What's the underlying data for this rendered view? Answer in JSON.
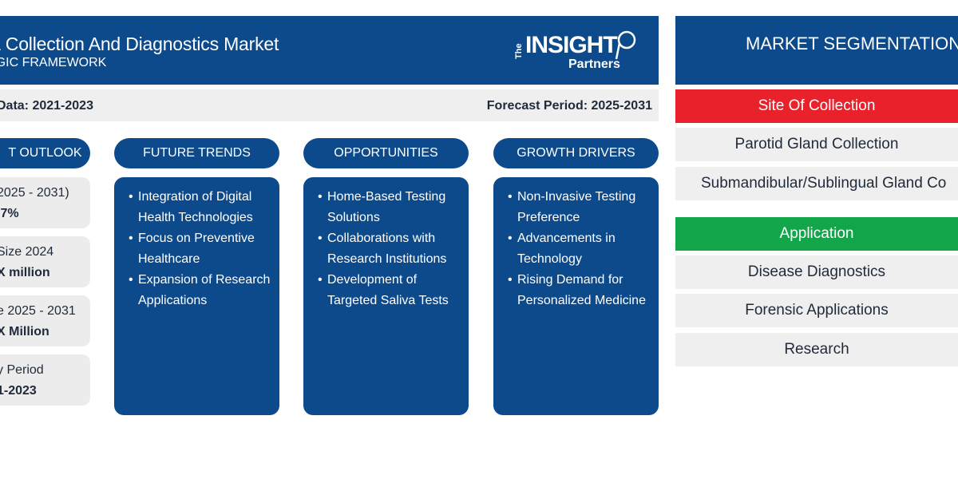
{
  "header": {
    "title": "a Collection And Diagnostics Market",
    "subtitle": "EGIC FRAMEWORK"
  },
  "logo": {
    "the": "The",
    "main": "INSIGHT",
    "partners": "Partners"
  },
  "subbar": {
    "historic": "Data: 2021-2023",
    "forecast": "Forecast Period: 2025-2031"
  },
  "outlook": {
    "label": "T OUTLOOK",
    "cards": [
      {
        "line1": "2025 - 2031)",
        "line2": ".7%"
      },
      {
        "line1": "Size 2024",
        "line2": "X million"
      },
      {
        "line1": "e 2025 - 2031",
        "line2": "X Million"
      },
      {
        "line1": "y Period",
        "line2": "1-2023"
      }
    ]
  },
  "future_trends": {
    "label": "FUTURE TRENDS",
    "items": [
      "Integration of Digital Health Technologies",
      "Focus on Preventive Healthcare",
      "Expansion of Research Applications"
    ]
  },
  "opportunities": {
    "label": "OPPORTUNITIES",
    "items": [
      "Home-Based Testing Solutions",
      "Collaborations with Research Institutions",
      "Development of Targeted Saliva Tests"
    ]
  },
  "growth_drivers": {
    "label": "GROWTH DRIVERS",
    "items": [
      "Non-Invasive Testing Preference",
      "Advancements in Technology",
      "Rising Demand for Personalized Medicine"
    ]
  },
  "segmentation": {
    "title": "MARKET SEGMENTATION",
    "categories": [
      {
        "name": "Site Of Collection",
        "color": "#e8212b",
        "items": [
          "Parotid Gland Collection",
          "Submandibular/Sublingual Gland Co"
        ]
      },
      {
        "name": "Application",
        "color": "#13a54a",
        "items": [
          "Disease Diagnostics",
          "Forensic Applications",
          "Research"
        ]
      }
    ]
  },
  "colors": {
    "primary": "#0d4a8b",
    "panel": "#efefef"
  }
}
